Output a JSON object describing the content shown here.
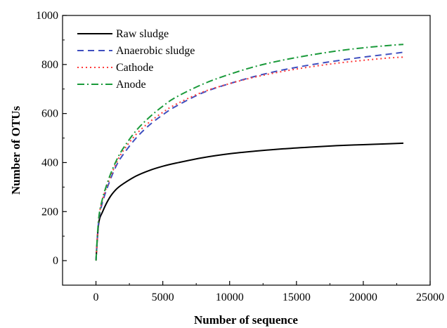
{
  "chart_data": {
    "type": "line",
    "title": "",
    "xlabel": "Number of sequence",
    "ylabel": "Number of OTUs",
    "xlim": [
      -2500,
      25000
    ],
    "ylim": [
      -100,
      1000
    ],
    "xticks": [
      0,
      5000,
      10000,
      15000,
      20000,
      25000
    ],
    "yticks": [
      0,
      200,
      400,
      600,
      800,
      1000
    ],
    "xtick_labels": [
      "0",
      "5000",
      "10000",
      "15000",
      "20000",
      "25000"
    ],
    "ytick_labels": [
      "0",
      "200",
      "400",
      "600",
      "800",
      "1000"
    ],
    "grid": false,
    "legend_position": "top-left",
    "x": [
      0,
      200,
      500,
      1000,
      1500,
      2000,
      3000,
      4000,
      5000,
      6000,
      8000,
      10000,
      12000,
      14000,
      16000,
      18000,
      20000,
      22000,
      23000
    ],
    "series": [
      {
        "name": "Raw sludge",
        "color": "#000000",
        "dash": "solid",
        "values": [
          0,
          150,
          200,
          255,
          290,
          312,
          345,
          368,
          385,
          398,
          420,
          436,
          447,
          456,
          463,
          469,
          473,
          477,
          479
        ]
      },
      {
        "name": "Anaerobic sludge",
        "color": "#3f4fbf",
        "dash": "dash",
        "values": [
          0,
          160,
          240,
          320,
          385,
          430,
          500,
          553,
          595,
          630,
          685,
          722,
          753,
          778,
          798,
          815,
          830,
          843,
          850
        ]
      },
      {
        "name": "Cathode",
        "color": "#ff3b3b",
        "dash": "dot",
        "values": [
          0,
          165,
          250,
          330,
          395,
          445,
          515,
          565,
          605,
          638,
          688,
          722,
          750,
          772,
          790,
          805,
          817,
          827,
          830
        ]
      },
      {
        "name": "Anode",
        "color": "#1a9a3a",
        "dash": "dashdot",
        "values": [
          0,
          170,
          255,
          340,
          405,
          455,
          530,
          585,
          630,
          667,
          720,
          760,
          793,
          818,
          838,
          855,
          868,
          878,
          882
        ]
      }
    ]
  }
}
